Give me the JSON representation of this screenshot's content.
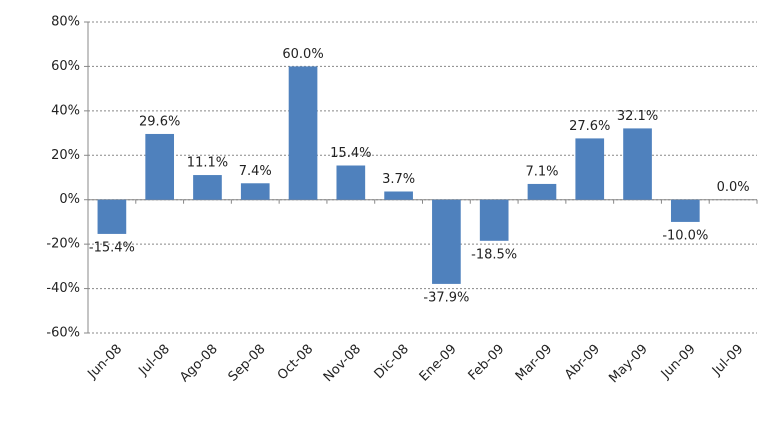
{
  "chart_data": {
    "type": "bar",
    "categories": [
      "Jun-08",
      "Jul-08",
      "Ago-08",
      "Sep-08",
      "Oct-08",
      "Nov-08",
      "Dic-08",
      "Ene-09",
      "Feb-09",
      "Mar-09",
      "Abr-09",
      "May-09",
      "Jun-09",
      "Jul-09"
    ],
    "values": [
      -15.4,
      29.6,
      11.1,
      7.4,
      60.0,
      15.4,
      3.7,
      -37.9,
      -18.5,
      7.1,
      27.6,
      32.1,
      -10.0,
      0.0
    ],
    "value_labels": [
      "-15.4%",
      "29.6%",
      "11.1%",
      "7.4%",
      "60.0%",
      "15.4%",
      "3.7%",
      "-37.9%",
      "-18.5%",
      "7.1%",
      "27.6%",
      "32.1%",
      "-10.0%",
      "0.0%"
    ],
    "color": "#4f81bd",
    "ylim": [
      -60,
      80
    ],
    "yticks": [
      {
        "value": -60,
        "label": "-60%"
      },
      {
        "value": -40,
        "label": "-40%"
      },
      {
        "value": -20,
        "label": "-20%"
      },
      {
        "value": 0,
        "label": "0%"
      },
      {
        "value": 20,
        "label": "20%"
      },
      {
        "value": 40,
        "label": "40%"
      },
      {
        "value": 60,
        "label": "60%"
      },
      {
        "value": 80,
        "label": "80%"
      }
    ],
    "grid": true
  }
}
